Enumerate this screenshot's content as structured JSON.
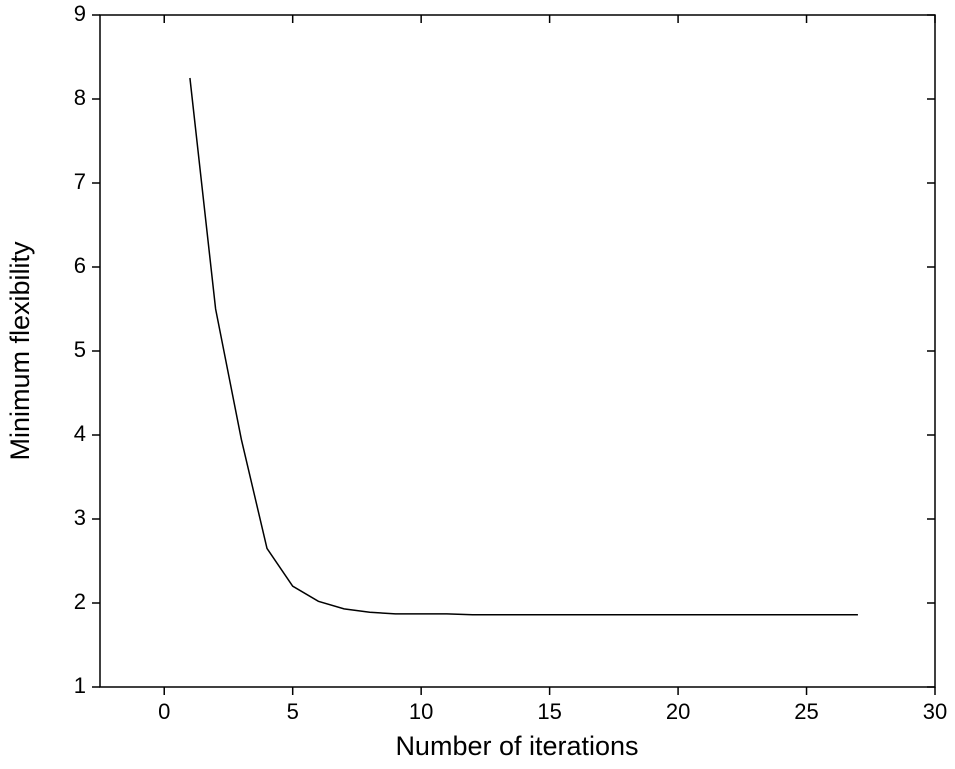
{
  "chart_data": {
    "type": "line",
    "x_label": "Number of iterations",
    "y_label": "Minimum flexibility",
    "x": [
      1,
      2,
      3,
      4,
      5,
      6,
      7,
      8,
      9,
      10,
      11,
      12,
      13,
      14,
      15,
      16,
      17,
      18,
      19,
      20,
      21,
      22,
      23,
      24,
      25,
      26,
      27
    ],
    "series": [
      {
        "color": "#000000",
        "values": [
          8.25,
          5.5,
          3.95,
          2.65,
          2.2,
          2.02,
          1.93,
          1.89,
          1.87,
          1.87,
          1.87,
          1.86,
          1.86,
          1.86,
          1.86,
          1.86,
          1.86,
          1.86,
          1.86,
          1.86,
          1.86,
          1.86,
          1.86,
          1.86,
          1.86,
          1.86,
          1.86
        ]
      }
    ],
    "xlim": [
      -2.5,
      30
    ],
    "xticks": [
      0,
      5,
      10,
      15,
      20,
      25,
      30
    ],
    "ylim": [
      1,
      9
    ],
    "yticks": [
      1,
      2,
      3,
      4,
      5,
      6,
      7,
      8,
      9
    ],
    "grid": false
  }
}
